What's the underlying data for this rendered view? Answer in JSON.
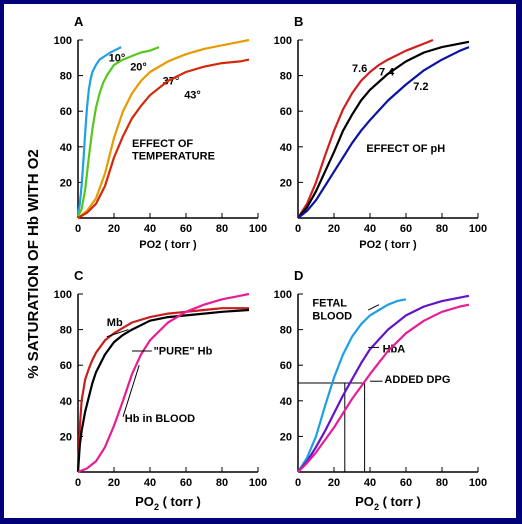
{
  "ylabel": "% SATURATION OF Hb WITH O2",
  "chart_data": [
    {
      "panel": "A",
      "type": "line",
      "xlabel": "PO2 ( torr )",
      "xlim": [
        0,
        100
      ],
      "ylim": [
        0,
        100
      ],
      "xticks": [
        0,
        20,
        40,
        60,
        80,
        100
      ],
      "yticks": [
        20,
        40,
        60,
        80,
        100
      ],
      "annotations": [
        {
          "text": "EFFECT OF",
          "x": 30,
          "y": 40
        },
        {
          "text": "TEMPERATURE",
          "x": 30,
          "y": 33
        }
      ],
      "series": [
        {
          "name": "10°",
          "color": "#1fa0e0",
          "label_at": [
            17,
            88
          ],
          "x": [
            0,
            1,
            2,
            3,
            4,
            5,
            6,
            7,
            8,
            10,
            12,
            15,
            18,
            20,
            24
          ],
          "y": [
            2,
            8,
            18,
            32,
            48,
            62,
            72,
            78,
            82,
            86,
            89,
            91,
            93,
            94,
            96
          ]
        },
        {
          "name": "20°",
          "color": "#55c81e",
          "label_at": [
            29,
            83
          ],
          "x": [
            0,
            2,
            4,
            6,
            8,
            10,
            12,
            14,
            16,
            20,
            25,
            30,
            35,
            40,
            45
          ],
          "y": [
            1,
            5,
            16,
            34,
            50,
            62,
            70,
            76,
            80,
            86,
            89,
            91,
            93,
            94,
            96
          ]
        },
        {
          "name": "37°",
          "color": "#e69b00",
          "label_at": [
            47,
            75
          ],
          "x": [
            0,
            5,
            10,
            15,
            20,
            25,
            30,
            35,
            40,
            50,
            60,
            70,
            80,
            90,
            95
          ],
          "y": [
            0,
            4,
            11,
            25,
            45,
            60,
            70,
            77,
            82,
            88,
            92,
            95,
            97,
            99,
            100
          ]
        },
        {
          "name": "43°",
          "color": "#d22a0a",
          "label_at": [
            59,
            67
          ],
          "x": [
            0,
            5,
            10,
            15,
            20,
            25,
            30,
            35,
            40,
            50,
            60,
            70,
            80,
            90,
            95
          ],
          "y": [
            0,
            3,
            8,
            18,
            34,
            46,
            56,
            63,
            69,
            77,
            82,
            85,
            87,
            88,
            89
          ]
        }
      ]
    },
    {
      "panel": "B",
      "type": "line",
      "xlabel": "PO2 ( torr )",
      "xlim": [
        0,
        100
      ],
      "ylim": [
        0,
        100
      ],
      "xticks": [
        0,
        20,
        40,
        60,
        80,
        100
      ],
      "yticks": [
        20,
        40,
        60,
        80,
        100
      ],
      "annotations": [
        {
          "text": "EFFECT OF pH",
          "x": 38,
          "y": 37
        }
      ],
      "series": [
        {
          "name": "7.6",
          "color": "#d21e1e",
          "label_at": [
            30,
            82
          ],
          "x": [
            0,
            5,
            10,
            15,
            20,
            25,
            30,
            35,
            40,
            45,
            50,
            60,
            70,
            75
          ],
          "y": [
            0,
            8,
            20,
            35,
            49,
            61,
            70,
            77,
            82,
            86,
            89,
            94,
            98,
            100
          ]
        },
        {
          "name": "7.4",
          "color": "#000000",
          "label_at": [
            45,
            80
          ],
          "x": [
            0,
            5,
            10,
            15,
            20,
            25,
            30,
            35,
            40,
            50,
            60,
            70,
            80,
            90,
            95
          ],
          "y": [
            0,
            6,
            15,
            26,
            37,
            49,
            58,
            66,
            72,
            81,
            88,
            93,
            96,
            98,
            99
          ]
        },
        {
          "name": "7.2",
          "color": "#0a14a0",
          "label_at": [
            64,
            72
          ],
          "x": [
            0,
            5,
            10,
            15,
            20,
            25,
            30,
            35,
            40,
            50,
            60,
            70,
            80,
            90,
            95
          ],
          "y": [
            0,
            4,
            10,
            18,
            26,
            34,
            42,
            49,
            55,
            66,
            75,
            83,
            89,
            94,
            96
          ]
        }
      ]
    },
    {
      "panel": "C",
      "type": "line",
      "xlabel": "PO2 ( torr )",
      "xlim": [
        0,
        100
      ],
      "ylim": [
        0,
        100
      ],
      "xticks": [
        0,
        20,
        40,
        60,
        80,
        100
      ],
      "yticks": [
        20,
        40,
        60,
        80,
        100
      ],
      "series": [
        {
          "name": "Mb",
          "color": "#c81e1e",
          "label_at": [
            16,
            82
          ],
          "x": [
            0,
            1,
            2,
            4,
            6,
            8,
            10,
            15,
            20,
            25,
            30,
            40,
            50,
            60,
            70,
            80,
            95
          ],
          "y": [
            0,
            25,
            40,
            52,
            58,
            63,
            67,
            74,
            78,
            81,
            84,
            87,
            89,
            90,
            91,
            92,
            92
          ]
        },
        {
          "name": "\"PURE\" Hb",
          "color": "#000000",
          "label_at": [
            42,
            66
          ],
          "x": [
            0,
            1,
            2,
            4,
            6,
            8,
            10,
            15,
            20,
            25,
            30,
            40,
            50,
            60,
            70,
            80,
            95
          ],
          "y": [
            0,
            15,
            23,
            34,
            42,
            50,
            56,
            66,
            73,
            77,
            80,
            85,
            87,
            88,
            89,
            90,
            91
          ]
        },
        {
          "name": "Hb in BLOOD",
          "color": "#e61e96",
          "label_at": [
            26,
            28
          ],
          "x": [
            0,
            5,
            10,
            15,
            20,
            25,
            30,
            35,
            40,
            45,
            50,
            60,
            70,
            80,
            90,
            95
          ],
          "y": [
            0,
            2,
            6,
            14,
            26,
            40,
            55,
            66,
            74,
            79,
            84,
            90,
            94,
            97,
            99,
            100
          ]
        }
      ]
    },
    {
      "panel": "D",
      "type": "line",
      "xlabel": "PO2 ( torr )",
      "xlim": [
        0,
        100
      ],
      "ylim": [
        0,
        100
      ],
      "xticks": [
        0,
        20,
        40,
        60,
        80,
        100
      ],
      "yticks": [
        20,
        40,
        60,
        80,
        100
      ],
      "series": [
        {
          "name": "FETAL",
          "name2": "BLOOD",
          "color": "#1ea0e0",
          "label_at": [
            8,
            93
          ],
          "x": [
            0,
            5,
            10,
            15,
            20,
            25,
            30,
            35,
            40,
            45,
            50,
            55,
            60
          ],
          "y": [
            0,
            8,
            20,
            37,
            53,
            66,
            76,
            83,
            88,
            91,
            94,
            96,
            97
          ]
        },
        {
          "name": "HbA",
          "color": "#6414c8",
          "label_at": [
            47,
            67
          ],
          "x": [
            0,
            5,
            10,
            15,
            20,
            25,
            30,
            35,
            40,
            50,
            60,
            70,
            80,
            90,
            95
          ],
          "y": [
            0,
            6,
            14,
            23,
            33,
            43,
            52,
            61,
            69,
            80,
            88,
            93,
            96,
            98,
            99
          ]
        },
        {
          "name": "ADDED DPG",
          "color": "#e61e96",
          "label_at": [
            48,
            50
          ],
          "x": [
            0,
            5,
            10,
            15,
            20,
            25,
            30,
            35,
            40,
            50,
            60,
            70,
            80,
            90,
            95
          ],
          "y": [
            0,
            5,
            11,
            18,
            25,
            33,
            41,
            48,
            55,
            68,
            78,
            85,
            90,
            93,
            94
          ]
        }
      ],
      "p50_lines": [
        {
          "x": 26,
          "y": 50
        },
        {
          "x": 37,
          "y": 50
        }
      ]
    }
  ]
}
